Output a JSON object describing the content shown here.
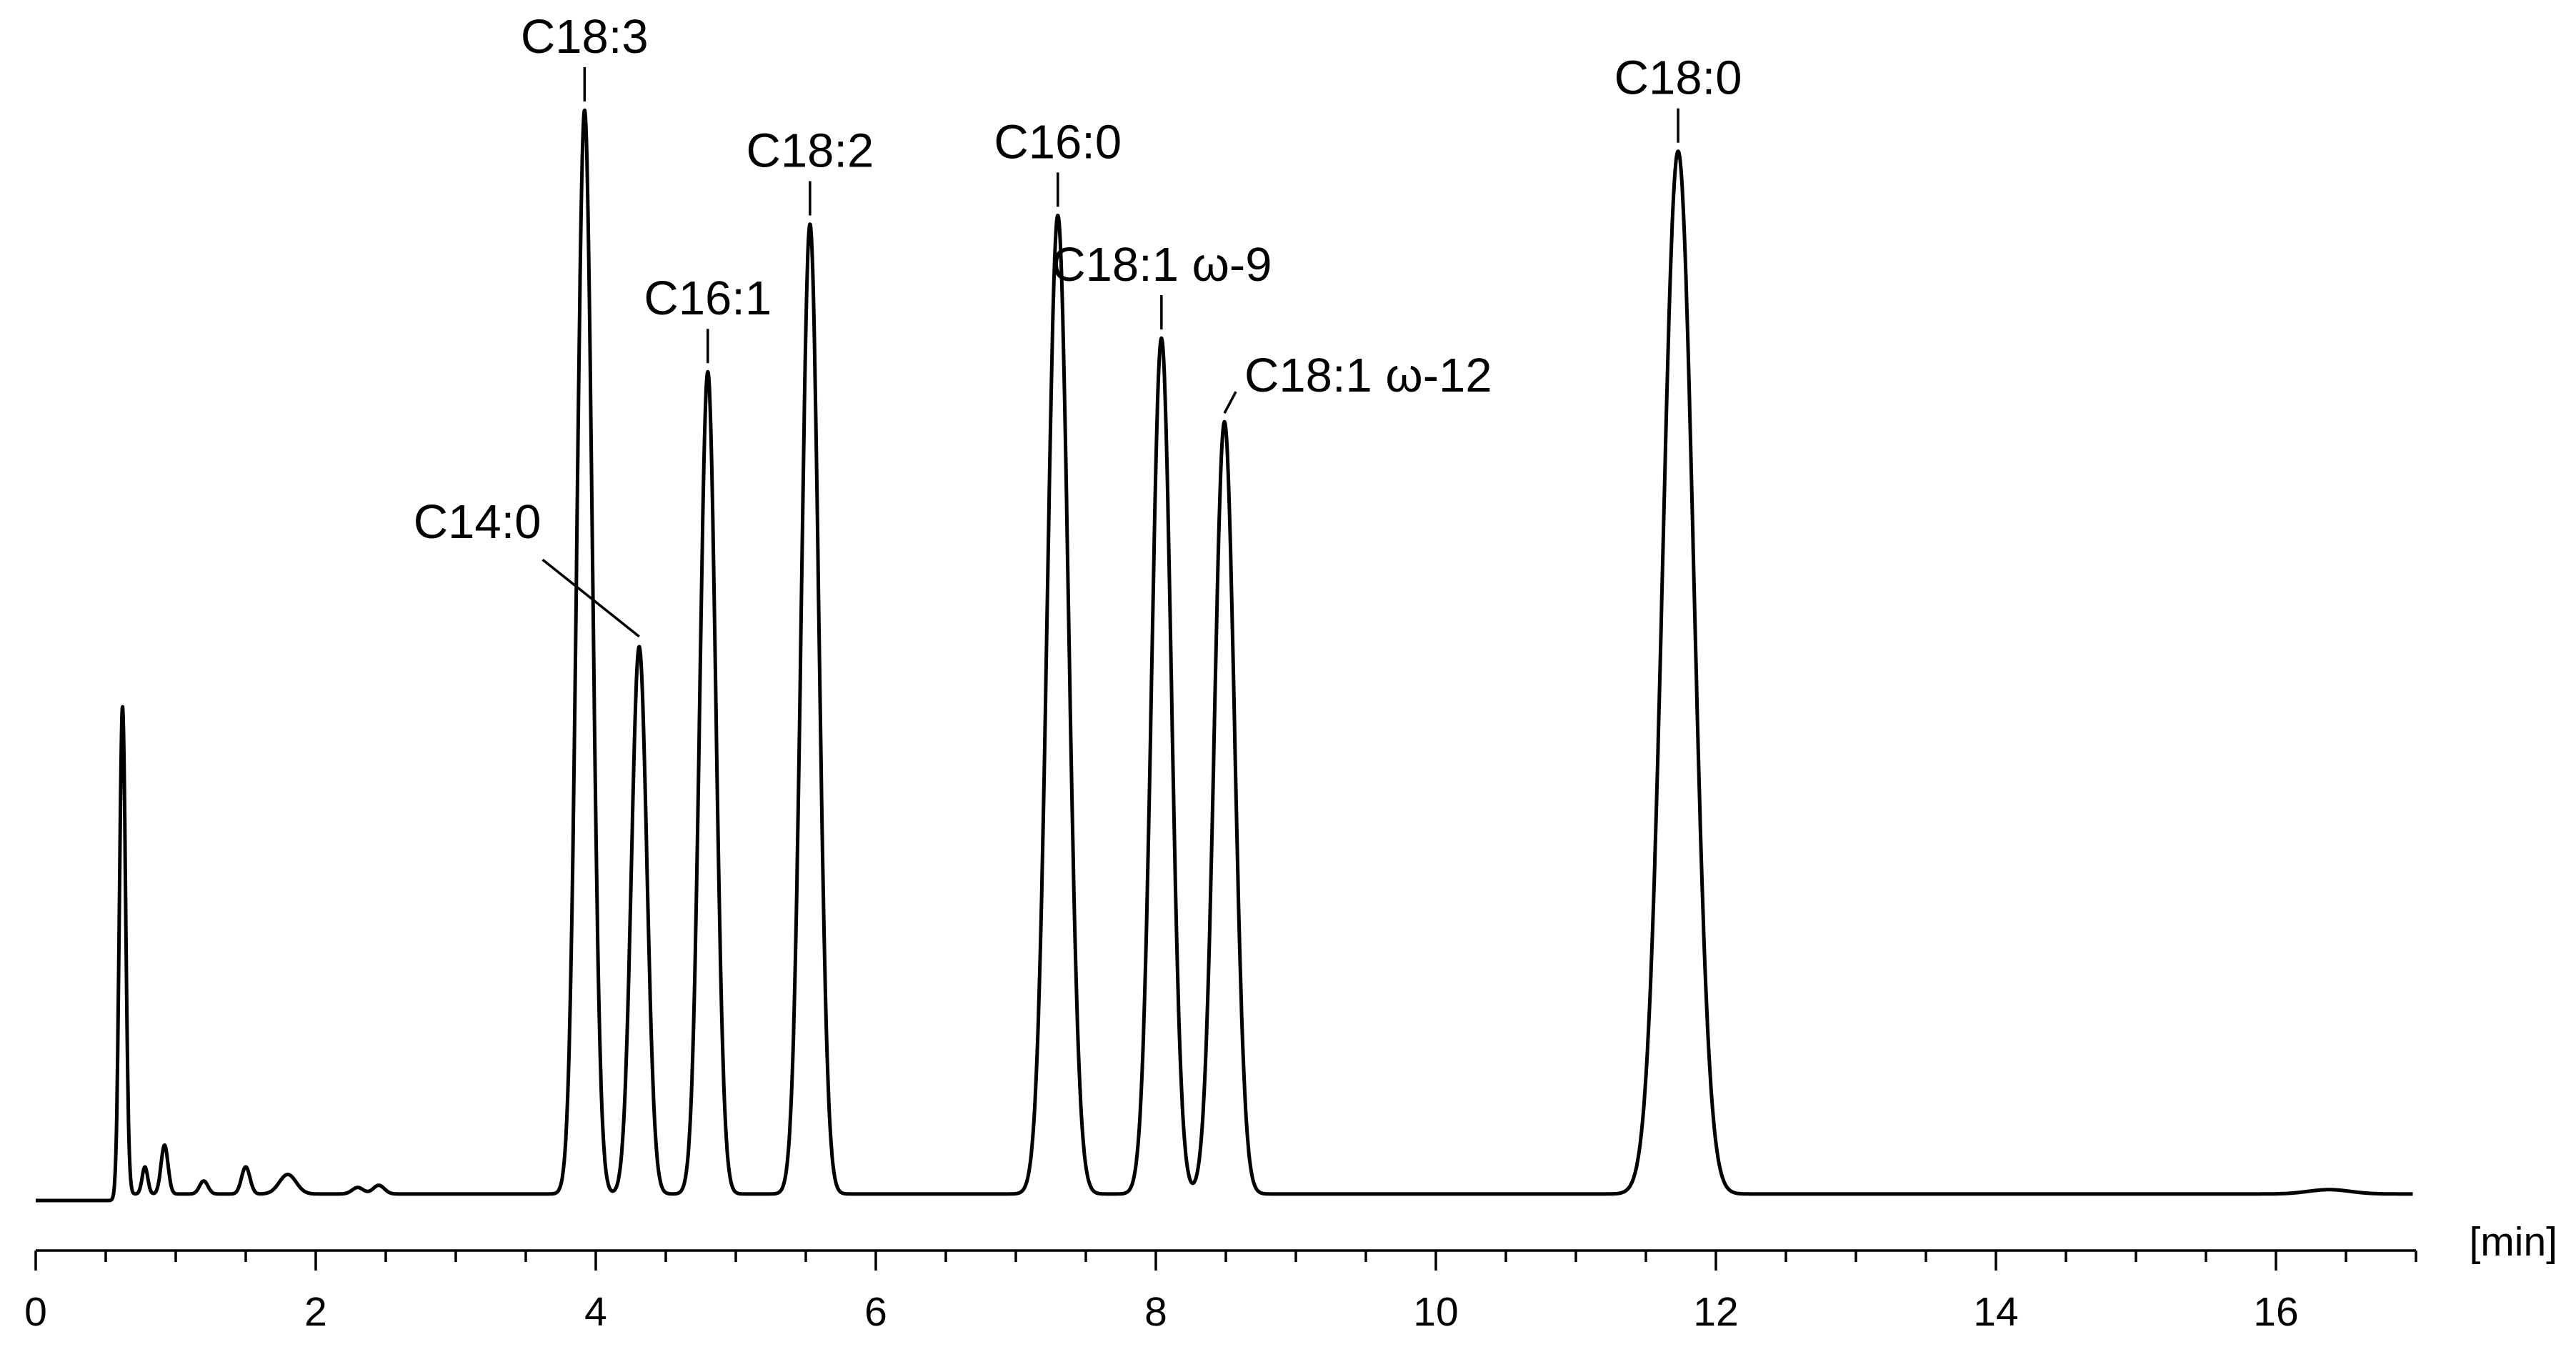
{
  "chart_data": {
    "type": "line",
    "title": "",
    "xlabel": "[min]",
    "ylabel": "",
    "xlim": [
      0,
      17
    ],
    "ylim": [
      0,
      1
    ],
    "grid": false,
    "legend": "none",
    "x_ticks": [
      "0",
      "2",
      "4",
      "6",
      "8",
      "10",
      "12",
      "14",
      "16"
    ],
    "minor_tick_step": 0.5,
    "baseline": 0.006,
    "peaks": [
      {
        "rt": 0.62,
        "height": 0.449,
        "sigma": 0.022,
        "label": ""
      },
      {
        "rt": 3.92,
        "height": 0.998,
        "sigma": 0.055,
        "label": "C18:3"
      },
      {
        "rt": 4.31,
        "height": 0.504,
        "sigma": 0.055,
        "label": "C14:0"
      },
      {
        "rt": 4.8,
        "height": 0.757,
        "sigma": 0.057,
        "label": "C16:1"
      },
      {
        "rt": 5.53,
        "height": 0.893,
        "sigma": 0.062,
        "label": "C18:2"
      },
      {
        "rt": 7.3,
        "height": 0.901,
        "sigma": 0.075,
        "label": "C16:0"
      },
      {
        "rt": 8.04,
        "height": 0.788,
        "sigma": 0.07,
        "label": "C18:1 ω-9"
      },
      {
        "rt": 8.49,
        "height": 0.711,
        "sigma": 0.072,
        "label": "C18:1 ω-12"
      },
      {
        "rt": 11.73,
        "height": 0.96,
        "sigma": 0.11,
        "label": "C18:0"
      }
    ],
    "minor_peaks": [
      {
        "rt": 0.78,
        "height": 0.025,
        "sigma": 0.02
      },
      {
        "rt": 0.92,
        "height": 0.045,
        "sigma": 0.025
      },
      {
        "rt": 1.2,
        "height": 0.012,
        "sigma": 0.03
      },
      {
        "rt": 1.5,
        "height": 0.025,
        "sigma": 0.03
      },
      {
        "rt": 1.8,
        "height": 0.018,
        "sigma": 0.06
      },
      {
        "rt": 2.3,
        "height": 0.006,
        "sigma": 0.04
      },
      {
        "rt": 2.45,
        "height": 0.008,
        "sigma": 0.04
      },
      {
        "rt": 16.38,
        "height": 0.004,
        "sigma": 0.15
      }
    ]
  }
}
